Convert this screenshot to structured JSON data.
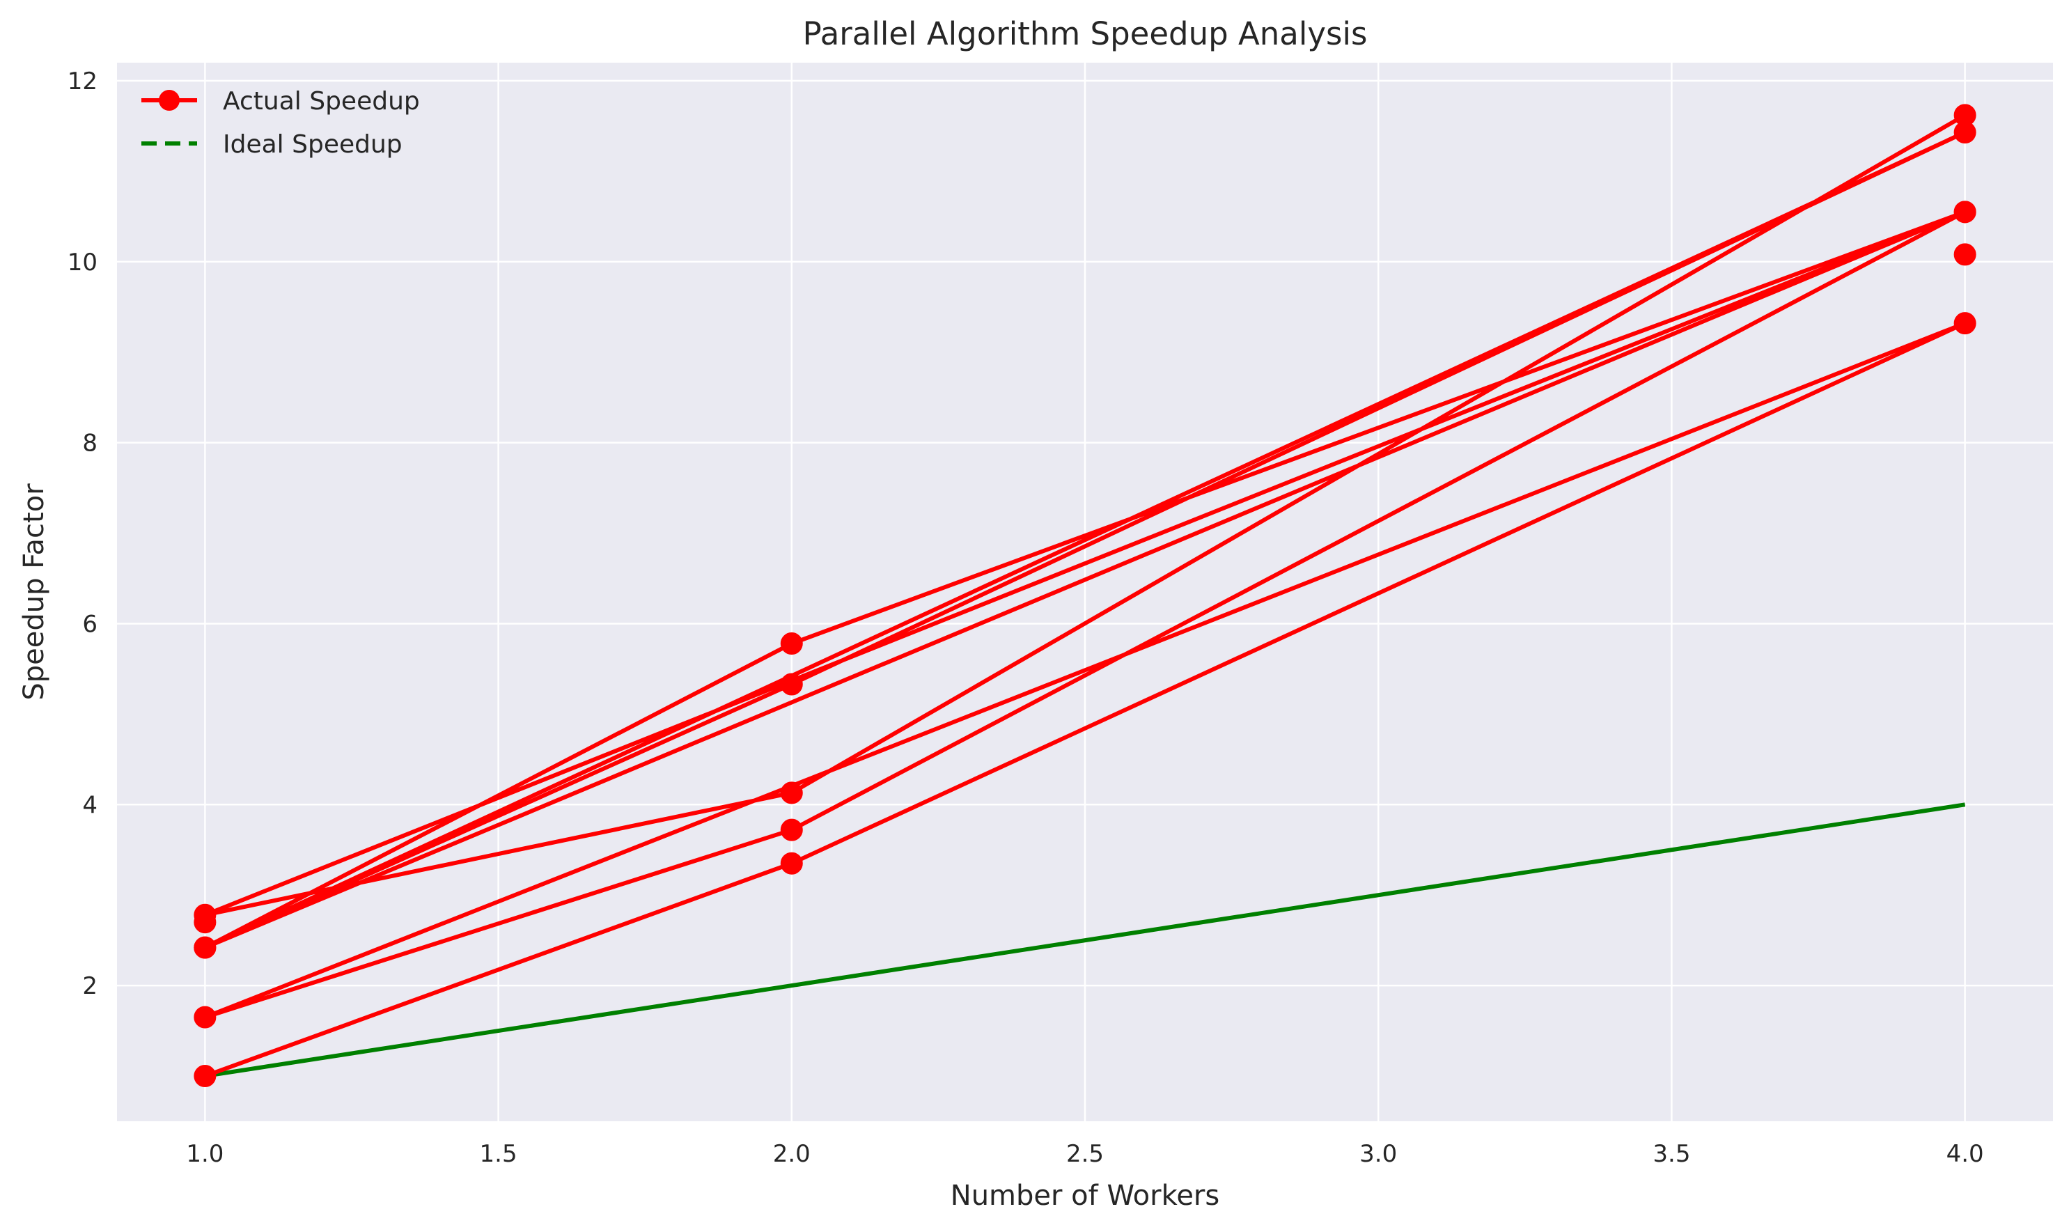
{
  "chart_data": {
    "type": "line",
    "title": "Parallel Algorithm Speedup Analysis",
    "xlabel": "Number of Workers",
    "ylabel": "Speedup Factor",
    "xlim": [
      0.85,
      4.15
    ],
    "ylim": [
      0.5,
      12.2
    ],
    "xticks": [
      1.0,
      1.5,
      2.0,
      2.5,
      3.0,
      3.5,
      4.0
    ],
    "xtick_labels": [
      "1.0",
      "1.5",
      "2.0",
      "2.5",
      "3.0",
      "3.5",
      "4.0"
    ],
    "yticks": [
      2,
      4,
      6,
      8,
      10,
      12
    ],
    "ytick_labels": [
      "2",
      "4",
      "6",
      "8",
      "10",
      "12"
    ],
    "grid": true,
    "legend_position": "top-left",
    "series": [
      {
        "name": "Actual Speedup",
        "color": "#ff0000",
        "marker": "circle",
        "style": "solid",
        "x": [
          1,
          2,
          4,
          1,
          2,
          4,
          1,
          2,
          4,
          1,
          2,
          4,
          1,
          2,
          4
        ],
        "y": [
          1.0,
          3.35,
          9.32,
          1.65,
          3.72,
          10.55,
          2.42,
          5.33,
          11.43,
          2.42,
          5.78,
          10.55,
          2.78,
          4.13,
          11.62
        ]
      },
      {
        "name": "Ideal Speedup",
        "color": "#008000",
        "marker": "none",
        "style": "dashed",
        "x": [
          1,
          2,
          4
        ],
        "y": [
          1,
          2,
          4
        ]
      }
    ],
    "extra_actual_points": [
      {
        "x": 1,
        "y": 2.7
      },
      {
        "x": 4,
        "y": 10.08
      }
    ]
  }
}
